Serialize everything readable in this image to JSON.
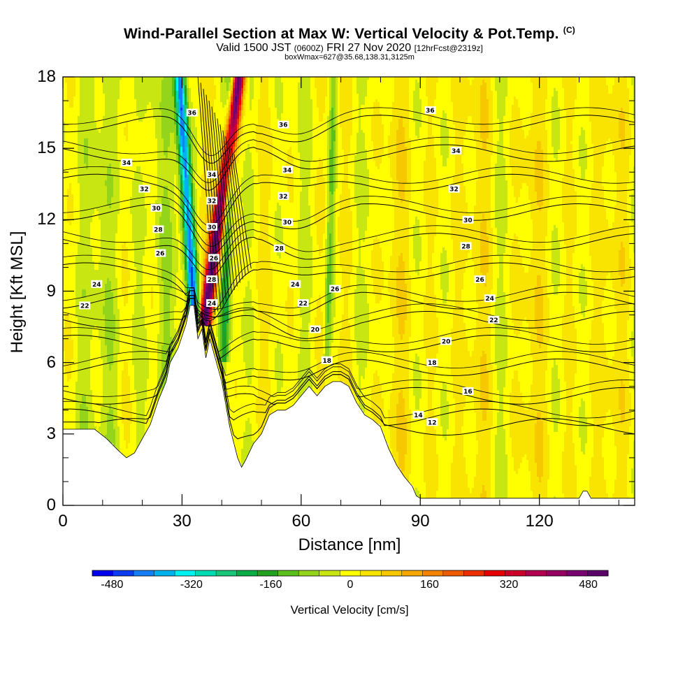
{
  "header": {
    "title_main": "Wind-Parallel Section at Max W: Vertical Velocity & Pot.Temp.",
    "title_mark": "(C)",
    "subtitle_a": "Valid 1500 JST",
    "subtitle_b": "(0600Z)",
    "subtitle_c": "FRI 27 Nov 2020",
    "subtitle_d": "[12hrFcst@2319z]",
    "info": "boxWmax=627@35.68,138.31,3125m"
  },
  "chart_data": {
    "type": "heatmap",
    "xlabel": "Distance [nm]",
    "ylabel": "Height [Kft MSL]",
    "xlim": [
      0,
      144
    ],
    "ylim": [
      0,
      18
    ],
    "x_ticks": [
      "0",
      "30",
      "60",
      "90",
      "120"
    ],
    "y_ticks": [
      "0",
      "3",
      "6",
      "9",
      "12",
      "15",
      "18"
    ],
    "colorbar": {
      "label": "Vertical Velocity [cm/s]",
      "range": [
        -520,
        520
      ],
      "tick_labels": [
        "-480",
        "-320",
        "-160",
        "0",
        "160",
        "320",
        "480"
      ],
      "colors": [
        "#0000ee",
        "#0b3cf0",
        "#147ef2",
        "#00b2ee",
        "#00f2f2",
        "#00dcb4",
        "#18c878",
        "#0aac46",
        "#22a020",
        "#5cc01c",
        "#94d41a",
        "#c8e612",
        "#ffff00",
        "#f8e400",
        "#f6c800",
        "#f4a800",
        "#f28400",
        "#f05a00",
        "#ec2e00",
        "#e60000",
        "#cc0028",
        "#b40050",
        "#960060",
        "#780070",
        "#5a0068"
      ]
    },
    "terrain_profile_kft": {
      "x": [
        0,
        4,
        8,
        11,
        14,
        16,
        18,
        20,
        22,
        24,
        26,
        27,
        29,
        31,
        32,
        33,
        34,
        35,
        36,
        37,
        38,
        40,
        42,
        44,
        45,
        46,
        48,
        50,
        52,
        54,
        56,
        58,
        60,
        62,
        64,
        66,
        68,
        70,
        72,
        74,
        76,
        78,
        80,
        82,
        84,
        86,
        88,
        89,
        90,
        100,
        115,
        120,
        125,
        130,
        131,
        132,
        133,
        144
      ],
      "y": [
        3.2,
        3.2,
        3.2,
        2.8,
        2.3,
        2.0,
        2.2,
        2.8,
        3.4,
        4.4,
        5.2,
        6.0,
        6.6,
        7.6,
        8.4,
        8.4,
        7.0,
        7.4,
        6.2,
        7.0,
        6.4,
        5.2,
        3.3,
        2.0,
        1.6,
        1.9,
        2.6,
        3.0,
        3.8,
        4.0,
        4.0,
        4.2,
        4.6,
        5.0,
        4.6,
        5.0,
        5.2,
        5.2,
        5.0,
        4.3,
        3.8,
        3.6,
        3.3,
        2.4,
        1.7,
        1.2,
        0.8,
        0.4,
        0.3,
        0.3,
        0.3,
        0.3,
        0.3,
        0.3,
        0.6,
        0.6,
        0.3,
        0.3
      ]
    },
    "velocity_features": [
      {
        "name": "wave-updraft",
        "x_base": 35.5,
        "lean": 0.28,
        "half_width": 1.6,
        "peak_cms": 500,
        "z_from": 7.5,
        "z_to": 18
      },
      {
        "name": "wave-downdraft",
        "x_base": 33.2,
        "lean": -0.12,
        "half_width": 1.4,
        "peak_cms": -420,
        "z_from": 7.5,
        "z_to": 18
      },
      {
        "name": "sink-band-1",
        "x_base": 40.5,
        "lean": 0.05,
        "half_width": 1.2,
        "peak_cms": -150,
        "z_from": 6,
        "z_to": 18
      },
      {
        "name": "sink-band-2",
        "x_base": 66.5,
        "lean": 0.05,
        "half_width": 1.0,
        "peak_cms": -110,
        "z_from": 6,
        "z_to": 18
      }
    ],
    "theta_levels_c": [
      12,
      14,
      16,
      18,
      20,
      22,
      24,
      26,
      28,
      30,
      32,
      34,
      36
    ],
    "contour_labels": [
      {
        "text": "22",
        "x": 5.5,
        "z": 8.4
      },
      {
        "text": "24",
        "x": 8.5,
        "z": 9.3
      },
      {
        "text": "26",
        "x": 24.5,
        "z": 10.6
      },
      {
        "text": "28",
        "x": 24.0,
        "z": 11.6
      },
      {
        "text": "30",
        "x": 23.5,
        "z": 12.5
      },
      {
        "text": "32",
        "x": 20.5,
        "z": 13.3
      },
      {
        "text": "34",
        "x": 16.0,
        "z": 14.4
      },
      {
        "text": "36",
        "x": 32.5,
        "z": 16.5
      },
      {
        "text": "34",
        "x": 37.5,
        "z": 13.9
      },
      {
        "text": "32",
        "x": 37.5,
        "z": 12.8
      },
      {
        "text": "30",
        "x": 37.5,
        "z": 11.7
      },
      {
        "text": "26",
        "x": 38.0,
        "z": 10.4
      },
      {
        "text": "28",
        "x": 37.5,
        "z": 9.5
      },
      {
        "text": "24",
        "x": 37.5,
        "z": 8.5
      },
      {
        "text": "36",
        "x": 55.5,
        "z": 16.0
      },
      {
        "text": "34",
        "x": 56.5,
        "z": 14.1
      },
      {
        "text": "32",
        "x": 55.5,
        "z": 13.0
      },
      {
        "text": "30",
        "x": 56.5,
        "z": 11.9
      },
      {
        "text": "28",
        "x": 54.5,
        "z": 10.8
      },
      {
        "text": "24",
        "x": 58.5,
        "z": 9.3
      },
      {
        "text": "22",
        "x": 60.5,
        "z": 8.5
      },
      {
        "text": "20",
        "x": 63.5,
        "z": 7.4
      },
      {
        "text": "18",
        "x": 66.5,
        "z": 6.1
      },
      {
        "text": "26",
        "x": 68.5,
        "z": 9.1
      },
      {
        "text": "36",
        "x": 92.5,
        "z": 16.6
      },
      {
        "text": "34",
        "x": 99.0,
        "z": 14.9
      },
      {
        "text": "32",
        "x": 98.5,
        "z": 13.3
      },
      {
        "text": "30",
        "x": 102.0,
        "z": 12.0
      },
      {
        "text": "28",
        "x": 101.5,
        "z": 10.9
      },
      {
        "text": "26",
        "x": 105.0,
        "z": 9.5
      },
      {
        "text": "24",
        "x": 107.5,
        "z": 8.7
      },
      {
        "text": "22",
        "x": 108.5,
        "z": 7.8
      },
      {
        "text": "20",
        "x": 96.5,
        "z": 6.9
      },
      {
        "text": "18",
        "x": 93.0,
        "z": 6.0
      },
      {
        "text": "16",
        "x": 102.0,
        "z": 4.8
      },
      {
        "text": "14",
        "x": 89.5,
        "z": 3.8
      },
      {
        "text": "12",
        "x": 93.0,
        "z": 3.5
      }
    ],
    "grid": false
  }
}
